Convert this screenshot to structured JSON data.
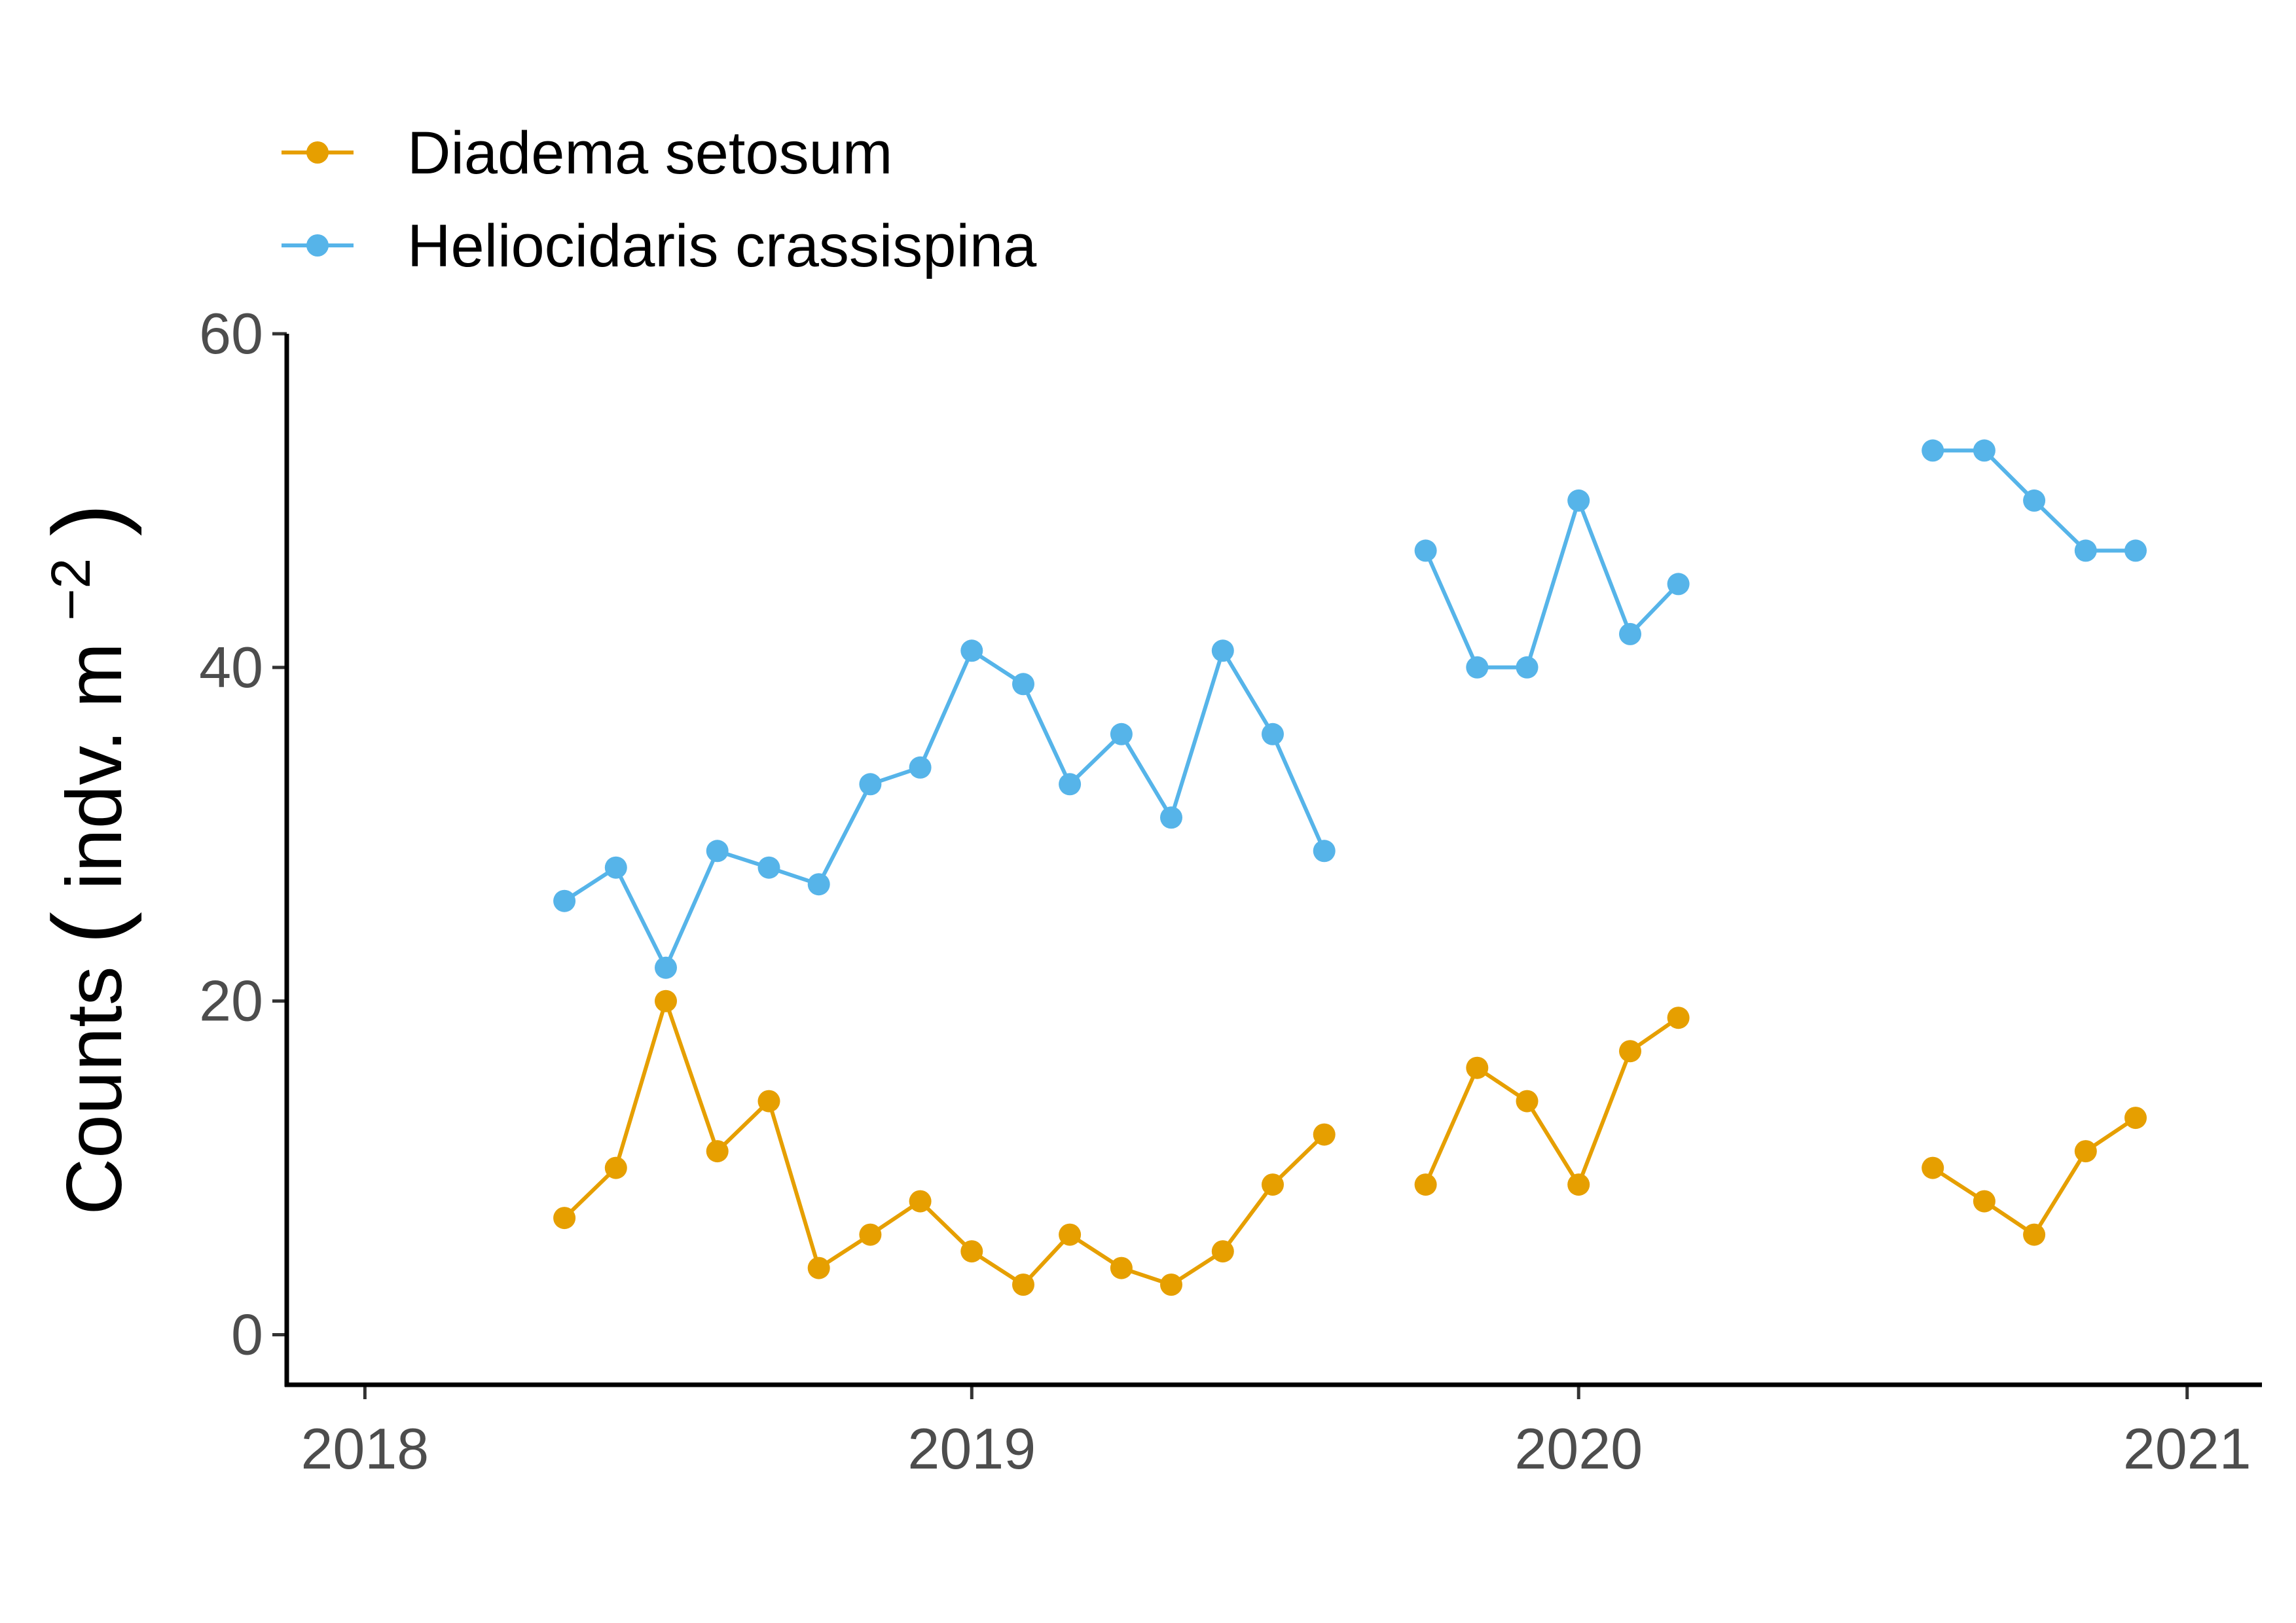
{
  "chart_data": {
    "type": "line",
    "title": "",
    "xlabel": "",
    "ylabel": {
      "main": "Counts",
      "unit_prefix": "indv. m",
      "unit_exponent": "−2"
    },
    "xlim": [
      "2017-11-15",
      "2021-02-15"
    ],
    "ylim": [
      -3,
      60
    ],
    "x_ticks": [
      {
        "date": "2018-01-01",
        "label": "2018"
      },
      {
        "date": "2019-01-01",
        "label": "2019"
      },
      {
        "date": "2020-01-01",
        "label": "2020"
      },
      {
        "date": "2021-01-01",
        "label": "2021"
      }
    ],
    "y_ticks": [
      {
        "value": 0,
        "label": "0"
      },
      {
        "value": 20,
        "label": "20"
      },
      {
        "value": 40,
        "label": "40"
      },
      {
        "value": 60,
        "label": "60"
      }
    ],
    "grid": false,
    "legend_position": "top-left",
    "series": [
      {
        "name": "Diadema setosum",
        "color": "#E69F00",
        "segments": [
          [
            {
              "x": "2018-05-01",
              "y": 7
            },
            {
              "x": "2018-06-01",
              "y": 10
            },
            {
              "x": "2018-07-01",
              "y": 20
            },
            {
              "x": "2018-08-01",
              "y": 11
            },
            {
              "x": "2018-09-01",
              "y": 14
            },
            {
              "x": "2018-10-01",
              "y": 4
            },
            {
              "x": "2018-11-01",
              "y": 6
            },
            {
              "x": "2018-12-01",
              "y": 8
            },
            {
              "x": "2019-01-01",
              "y": 5
            },
            {
              "x": "2019-02-01",
              "y": 3
            },
            {
              "x": "2019-03-01",
              "y": 6
            },
            {
              "x": "2019-04-01",
              "y": 4
            },
            {
              "x": "2019-05-01",
              "y": 3
            },
            {
              "x": "2019-06-01",
              "y": 5
            },
            {
              "x": "2019-07-01",
              "y": 9
            },
            {
              "x": "2019-08-01",
              "y": 12
            }
          ],
          [
            {
              "x": "2019-10-01",
              "y": 9
            },
            {
              "x": "2019-11-01",
              "y": 16
            },
            {
              "x": "2019-12-01",
              "y": 14
            },
            {
              "x": "2020-01-01",
              "y": 9
            },
            {
              "x": "2020-02-01",
              "y": 17
            },
            {
              "x": "2020-03-01",
              "y": 19
            }
          ],
          [
            {
              "x": "2020-08-01",
              "y": 10
            },
            {
              "x": "2020-09-01",
              "y": 8
            },
            {
              "x": "2020-10-01",
              "y": 6
            },
            {
              "x": "2020-11-01",
              "y": 11
            },
            {
              "x": "2020-12-01",
              "y": 13
            }
          ]
        ]
      },
      {
        "name": "Heliocidaris crassispina",
        "color": "#56B4E9",
        "segments": [
          [
            {
              "x": "2018-05-01",
              "y": 26
            },
            {
              "x": "2018-06-01",
              "y": 28
            },
            {
              "x": "2018-07-01",
              "y": 22
            },
            {
              "x": "2018-08-01",
              "y": 29
            },
            {
              "x": "2018-09-01",
              "y": 28
            },
            {
              "x": "2018-10-01",
              "y": 27
            },
            {
              "x": "2018-11-01",
              "y": 33
            },
            {
              "x": "2018-12-01",
              "y": 34
            },
            {
              "x": "2019-01-01",
              "y": 41
            },
            {
              "x": "2019-02-01",
              "y": 39
            },
            {
              "x": "2019-03-01",
              "y": 33
            },
            {
              "x": "2019-04-01",
              "y": 36
            },
            {
              "x": "2019-05-01",
              "y": 31
            },
            {
              "x": "2019-06-01",
              "y": 41
            },
            {
              "x": "2019-07-01",
              "y": 36
            },
            {
              "x": "2019-08-01",
              "y": 29
            }
          ],
          [
            {
              "x": "2019-10-01",
              "y": 47
            },
            {
              "x": "2019-11-01",
              "y": 40
            },
            {
              "x": "2019-12-01",
              "y": 40
            },
            {
              "x": "2020-01-01",
              "y": 50
            },
            {
              "x": "2020-02-01",
              "y": 42
            },
            {
              "x": "2020-03-01",
              "y": 45
            }
          ],
          [
            {
              "x": "2020-08-01",
              "y": 53
            },
            {
              "x": "2020-09-01",
              "y": 53
            },
            {
              "x": "2020-10-01",
              "y": 50
            },
            {
              "x": "2020-11-01",
              "y": 47
            },
            {
              "x": "2020-12-01",
              "y": 47
            }
          ]
        ]
      }
    ]
  }
}
